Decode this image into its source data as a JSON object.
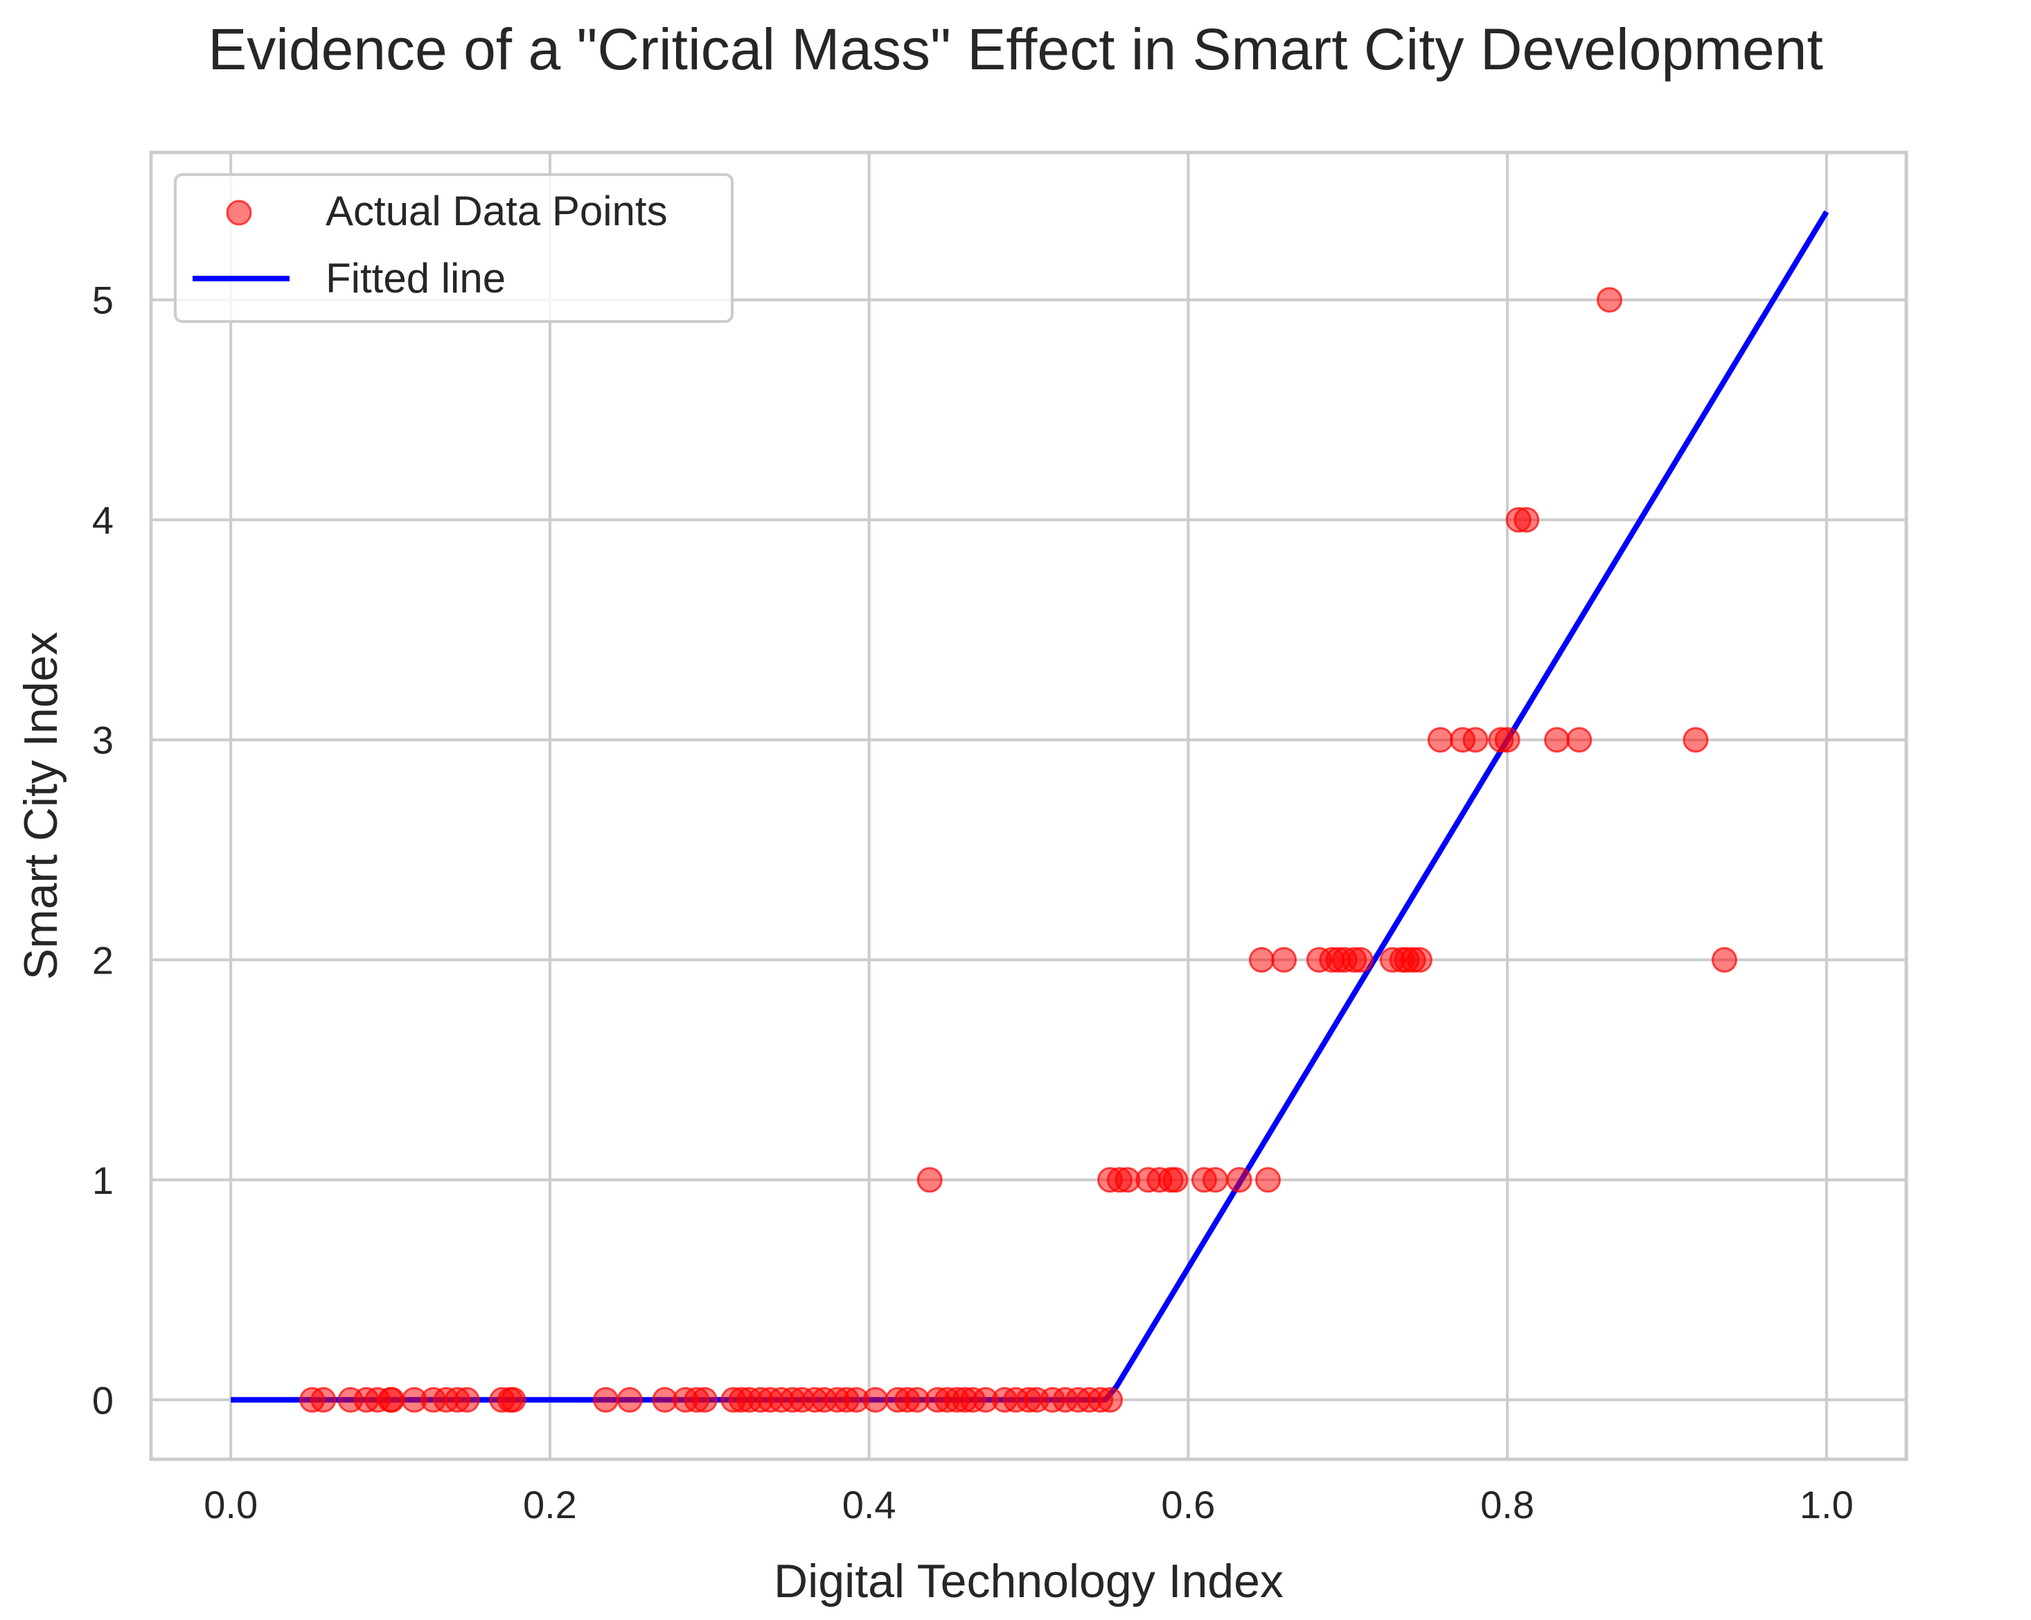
{
  "chart_data": {
    "type": "scatter",
    "title": "Evidence of a \"Critical Mass\" Effect in Smart City Development",
    "xlabel": "Digital Technology Index",
    "ylabel": "Smart City Index",
    "xlim": [
      -0.05,
      1.05
    ],
    "ylim": [
      -0.27,
      5.67
    ],
    "xticks": [
      0.0,
      0.2,
      0.4,
      0.6,
      0.8,
      1.0
    ],
    "xtick_labels": [
      "0.0",
      "0.2",
      "0.4",
      "0.6",
      "0.8",
      "1.0"
    ],
    "yticks": [
      0,
      1,
      2,
      3,
      4,
      5
    ],
    "ytick_labels": [
      "0",
      "1",
      "2",
      "3",
      "4",
      "5"
    ],
    "grid": true,
    "legend_position": "top-left",
    "series": [
      {
        "name": "Actual Data Points",
        "kind": "scatter",
        "color": "#ff0000",
        "points": [
          [
            0.051,
            0
          ],
          [
            0.058,
            0
          ],
          [
            0.075,
            0
          ],
          [
            0.085,
            0
          ],
          [
            0.092,
            0
          ],
          [
            0.1,
            0
          ],
          [
            0.101,
            0
          ],
          [
            0.115,
            0
          ],
          [
            0.127,
            0
          ],
          [
            0.135,
            0
          ],
          [
            0.142,
            0
          ],
          [
            0.148,
            0
          ],
          [
            0.17,
            0
          ],
          [
            0.175,
            0
          ],
          [
            0.177,
            0
          ],
          [
            0.235,
            0
          ],
          [
            0.25,
            0
          ],
          [
            0.272,
            0
          ],
          [
            0.285,
            0
          ],
          [
            0.292,
            0
          ],
          [
            0.297,
            0
          ],
          [
            0.315,
            0
          ],
          [
            0.32,
            0
          ],
          [
            0.325,
            0
          ],
          [
            0.332,
            0
          ],
          [
            0.338,
            0
          ],
          [
            0.345,
            0
          ],
          [
            0.352,
            0
          ],
          [
            0.358,
            0
          ],
          [
            0.366,
            0
          ],
          [
            0.372,
            0
          ],
          [
            0.38,
            0
          ],
          [
            0.386,
            0
          ],
          [
            0.392,
            0
          ],
          [
            0.404,
            0
          ],
          [
            0.418,
            0
          ],
          [
            0.424,
            0
          ],
          [
            0.43,
            0
          ],
          [
            0.443,
            0
          ],
          [
            0.449,
            0
          ],
          [
            0.455,
            0
          ],
          [
            0.46,
            0
          ],
          [
            0.465,
            0
          ],
          [
            0.473,
            0
          ],
          [
            0.485,
            0
          ],
          [
            0.492,
            0
          ],
          [
            0.5,
            0
          ],
          [
            0.505,
            0
          ],
          [
            0.515,
            0
          ],
          [
            0.523,
            0
          ],
          [
            0.531,
            0
          ],
          [
            0.538,
            0
          ],
          [
            0.545,
            0
          ],
          [
            0.551,
            0
          ],
          [
            0.438,
            1
          ],
          [
            0.551,
            1
          ],
          [
            0.557,
            1
          ],
          [
            0.562,
            1
          ],
          [
            0.575,
            1
          ],
          [
            0.582,
            1
          ],
          [
            0.589,
            1
          ],
          [
            0.592,
            1
          ],
          [
            0.61,
            1
          ],
          [
            0.617,
            1
          ],
          [
            0.632,
            1
          ],
          [
            0.65,
            1
          ],
          [
            0.646,
            2
          ],
          [
            0.66,
            2
          ],
          [
            0.682,
            2
          ],
          [
            0.69,
            2
          ],
          [
            0.694,
            2
          ],
          [
            0.698,
            2
          ],
          [
            0.704,
            2
          ],
          [
            0.708,
            2
          ],
          [
            0.728,
            2
          ],
          [
            0.734,
            2
          ],
          [
            0.737,
            2
          ],
          [
            0.741,
            2
          ],
          [
            0.745,
            2
          ],
          [
            0.936,
            2
          ],
          [
            0.758,
            3
          ],
          [
            0.772,
            3
          ],
          [
            0.78,
            3
          ],
          [
            0.796,
            3
          ],
          [
            0.8,
            3
          ],
          [
            0.831,
            3
          ],
          [
            0.845,
            3
          ],
          [
            0.918,
            3
          ],
          [
            0.807,
            4
          ],
          [
            0.812,
            4
          ],
          [
            0.864,
            5
          ]
        ]
      },
      {
        "name": "Fitted line",
        "kind": "line",
        "color": "#0000ff",
        "points": [
          [
            0.0,
            0.0
          ],
          [
            0.548,
            0.0
          ],
          [
            0.555,
            0.06
          ],
          [
            1.0,
            5.4
          ]
        ]
      }
    ]
  }
}
